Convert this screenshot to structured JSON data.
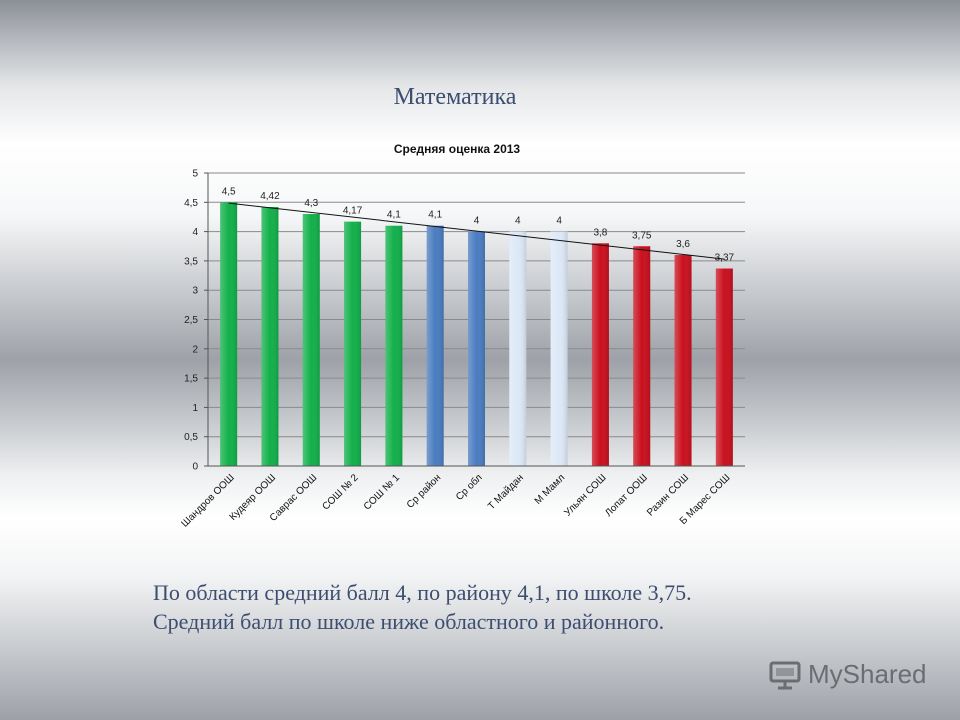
{
  "slide": {
    "title": "Математика",
    "caption_lines": [
      "По области средний балл 4, по району 4,1, по школе 3,75.",
      "Средний балл по школе ниже областного и районного."
    ],
    "watermark": "MyShared"
  },
  "chart_data": {
    "type": "bar",
    "title": "Средняя оценка 2013",
    "xlabel": "",
    "ylabel": "",
    "ylim": [
      0,
      5
    ],
    "yticks": [
      "0",
      "0,5",
      "1",
      "1,5",
      "2",
      "2,5",
      "3",
      "3,5",
      "4",
      "4,5",
      "5"
    ],
    "grid": true,
    "legend": "none",
    "trendline": true,
    "categories": [
      "Шандров ООШ",
      "Кудеяр ООШ",
      "Саврас ООШ",
      "СОШ № 2",
      "СОШ № 1",
      "Ср район",
      "Ср обл",
      "Т Майдан",
      "М Мамл",
      "Ульян СОШ",
      "Лопат ООШ",
      "Разин СОШ",
      "Б Марес СОШ"
    ],
    "values": [
      4.5,
      4.42,
      4.3,
      4.17,
      4.1,
      4.1,
      4,
      4,
      4,
      3.8,
      3.75,
      3.6,
      3.37
    ],
    "data_labels": [
      "4,5",
      "4,42",
      "4,3",
      "4,17",
      "4,1",
      "4,1",
      "4",
      "4",
      "4",
      "3,8",
      "3,75",
      "3,6",
      "3,37"
    ],
    "bar_colors": [
      "#12b04a",
      "#12b04a",
      "#12b04a",
      "#12b04a",
      "#12b04a",
      "#4a7cc0",
      "#4a7cc0",
      "#dde8f7",
      "#dde8f7",
      "#c9101e",
      "#c9101e",
      "#c9101e",
      "#c9101e"
    ]
  }
}
